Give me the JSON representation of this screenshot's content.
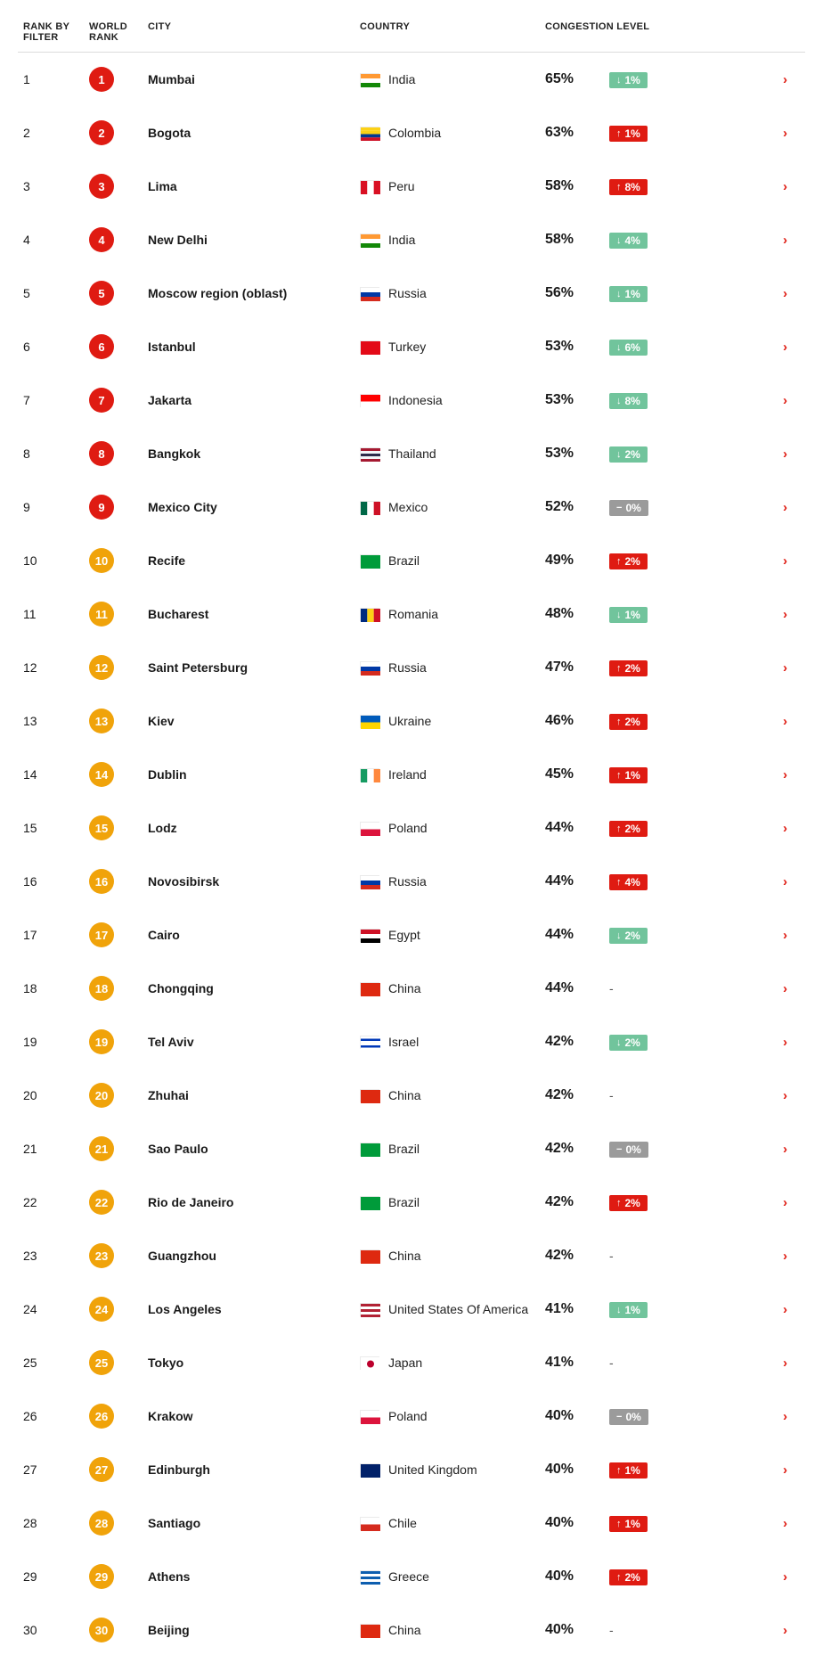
{
  "columns": {
    "filter": "RANK BY FILTER",
    "world": "WORLD RANK",
    "city": "CITY",
    "country": "COUNTRY",
    "level": "CONGESTION LEVEL"
  },
  "badge_colors": {
    "red": "#df1b12",
    "orange": "#f0a30a"
  },
  "change_colors": {
    "up": "#df1b12",
    "down": "#71c49c",
    "none": "#9b9b9b"
  },
  "flags": {
    "India": {
      "bands": "h",
      "c": [
        "#ff9933",
        "#ffffff",
        "#138808"
      ]
    },
    "Colombia": {
      "bands": "h",
      "c": [
        "#fcd116",
        "#fcd116",
        "#003893",
        "#ce1126"
      ]
    },
    "Peru": {
      "bands": "v",
      "c": [
        "#d91023",
        "#ffffff",
        "#d91023"
      ]
    },
    "Russia": {
      "bands": "h",
      "c": [
        "#ffffff",
        "#0039a6",
        "#d52b1e"
      ]
    },
    "Turkey": {
      "solid": "#e30a17"
    },
    "Indonesia": {
      "bands": "h",
      "c": [
        "#ff0000",
        "#ffffff"
      ]
    },
    "Thailand": {
      "bands": "h",
      "c": [
        "#a51931",
        "#f4f5f8",
        "#2d2a4a",
        "#f4f5f8",
        "#a51931"
      ]
    },
    "Mexico": {
      "bands": "v",
      "c": [
        "#006847",
        "#ffffff",
        "#ce1126"
      ]
    },
    "Brazil": {
      "solid": "#009b3a"
    },
    "Romania": {
      "bands": "v",
      "c": [
        "#002b7f",
        "#fcd116",
        "#ce1126"
      ]
    },
    "Ukraine": {
      "bands": "h",
      "c": [
        "#005bbb",
        "#ffd500"
      ]
    },
    "Ireland": {
      "bands": "v",
      "c": [
        "#169b62",
        "#ffffff",
        "#ff883e"
      ]
    },
    "Poland": {
      "bands": "h",
      "c": [
        "#ffffff",
        "#dc143c"
      ]
    },
    "Egypt": {
      "bands": "h",
      "c": [
        "#ce1126",
        "#ffffff",
        "#000000"
      ]
    },
    "China": {
      "solid": "#de2910"
    },
    "Israel": {
      "bands": "h",
      "c": [
        "#ffffff",
        "#0038b8",
        "#ffffff",
        "#ffffff",
        "#0038b8",
        "#ffffff"
      ]
    },
    "United States Of America": {
      "bands": "h",
      "c": [
        "#b22234",
        "#ffffff",
        "#b22234",
        "#ffffff",
        "#b22234"
      ]
    },
    "Japan": {
      "solid": "#ffffff",
      "dot": "#bc002d"
    },
    "United Kingdom": {
      "solid": "#012169"
    },
    "Chile": {
      "bands": "h",
      "c": [
        "#ffffff",
        "#d52b1e"
      ]
    },
    "Greece": {
      "bands": "h",
      "c": [
        "#0d5eaf",
        "#ffffff",
        "#0d5eaf",
        "#ffffff",
        "#0d5eaf"
      ]
    }
  },
  "rows": [
    {
      "filter": 1,
      "world": 1,
      "city": "Mumbai",
      "country": "India",
      "level": "65%",
      "change": {
        "dir": "down",
        "text": "1%"
      },
      "tier": "red"
    },
    {
      "filter": 2,
      "world": 2,
      "city": "Bogota",
      "country": "Colombia",
      "level": "63%",
      "change": {
        "dir": "up",
        "text": "1%"
      },
      "tier": "red"
    },
    {
      "filter": 3,
      "world": 3,
      "city": "Lima",
      "country": "Peru",
      "level": "58%",
      "change": {
        "dir": "up",
        "text": "8%"
      },
      "tier": "red"
    },
    {
      "filter": 4,
      "world": 4,
      "city": "New Delhi",
      "country": "India",
      "level": "58%",
      "change": {
        "dir": "down",
        "text": "4%"
      },
      "tier": "red"
    },
    {
      "filter": 5,
      "world": 5,
      "city": "Moscow region (oblast)",
      "country": "Russia",
      "level": "56%",
      "change": {
        "dir": "down",
        "text": "1%"
      },
      "tier": "red"
    },
    {
      "filter": 6,
      "world": 6,
      "city": "Istanbul",
      "country": "Turkey",
      "level": "53%",
      "change": {
        "dir": "down",
        "text": "6%"
      },
      "tier": "red"
    },
    {
      "filter": 7,
      "world": 7,
      "city": "Jakarta",
      "country": "Indonesia",
      "level": "53%",
      "change": {
        "dir": "down",
        "text": "8%"
      },
      "tier": "red"
    },
    {
      "filter": 8,
      "world": 8,
      "city": "Bangkok",
      "country": "Thailand",
      "level": "53%",
      "change": {
        "dir": "down",
        "text": "2%"
      },
      "tier": "red"
    },
    {
      "filter": 9,
      "world": 9,
      "city": "Mexico City",
      "country": "Mexico",
      "level": "52%",
      "change": {
        "dir": "none",
        "text": "0%"
      },
      "tier": "red"
    },
    {
      "filter": 10,
      "world": 10,
      "city": "Recife",
      "country": "Brazil",
      "level": "49%",
      "change": {
        "dir": "up",
        "text": "2%"
      },
      "tier": "orange"
    },
    {
      "filter": 11,
      "world": 11,
      "city": "Bucharest",
      "country": "Romania",
      "level": "48%",
      "change": {
        "dir": "down",
        "text": "1%"
      },
      "tier": "orange"
    },
    {
      "filter": 12,
      "world": 12,
      "city": "Saint Petersburg",
      "country": "Russia",
      "level": "47%",
      "change": {
        "dir": "up",
        "text": "2%"
      },
      "tier": "orange"
    },
    {
      "filter": 13,
      "world": 13,
      "city": "Kiev",
      "country": "Ukraine",
      "level": "46%",
      "change": {
        "dir": "up",
        "text": "2%"
      },
      "tier": "orange"
    },
    {
      "filter": 14,
      "world": 14,
      "city": "Dublin",
      "country": "Ireland",
      "level": "45%",
      "change": {
        "dir": "up",
        "text": "1%"
      },
      "tier": "orange"
    },
    {
      "filter": 15,
      "world": 15,
      "city": "Lodz",
      "country": "Poland",
      "level": "44%",
      "change": {
        "dir": "up",
        "text": "2%"
      },
      "tier": "orange"
    },
    {
      "filter": 16,
      "world": 16,
      "city": "Novosibirsk",
      "country": "Russia",
      "level": "44%",
      "change": {
        "dir": "up",
        "text": "4%"
      },
      "tier": "orange"
    },
    {
      "filter": 17,
      "world": 17,
      "city": "Cairo",
      "country": "Egypt",
      "level": "44%",
      "change": {
        "dir": "down",
        "text": "2%"
      },
      "tier": "orange"
    },
    {
      "filter": 18,
      "world": 18,
      "city": "Chongqing",
      "country": "China",
      "level": "44%",
      "change": null,
      "tier": "orange"
    },
    {
      "filter": 19,
      "world": 19,
      "city": "Tel Aviv",
      "country": "Israel",
      "level": "42%",
      "change": {
        "dir": "down",
        "text": "2%"
      },
      "tier": "orange"
    },
    {
      "filter": 20,
      "world": 20,
      "city": "Zhuhai",
      "country": "China",
      "level": "42%",
      "change": null,
      "tier": "orange"
    },
    {
      "filter": 21,
      "world": 21,
      "city": "Sao Paulo",
      "country": "Brazil",
      "level": "42%",
      "change": {
        "dir": "none",
        "text": "0%"
      },
      "tier": "orange"
    },
    {
      "filter": 22,
      "world": 22,
      "city": "Rio de Janeiro",
      "country": "Brazil",
      "level": "42%",
      "change": {
        "dir": "up",
        "text": "2%"
      },
      "tier": "orange"
    },
    {
      "filter": 23,
      "world": 23,
      "city": "Guangzhou",
      "country": "China",
      "level": "42%",
      "change": null,
      "tier": "orange"
    },
    {
      "filter": 24,
      "world": 24,
      "city": "Los Angeles",
      "country": "United States Of America",
      "level": "41%",
      "change": {
        "dir": "down",
        "text": "1%"
      },
      "tier": "orange"
    },
    {
      "filter": 25,
      "world": 25,
      "city": "Tokyo",
      "country": "Japan",
      "level": "41%",
      "change": null,
      "tier": "orange"
    },
    {
      "filter": 26,
      "world": 26,
      "city": "Krakow",
      "country": "Poland",
      "level": "40%",
      "change": {
        "dir": "none",
        "text": "0%"
      },
      "tier": "orange"
    },
    {
      "filter": 27,
      "world": 27,
      "city": "Edinburgh",
      "country": "United Kingdom",
      "level": "40%",
      "change": {
        "dir": "up",
        "text": "1%"
      },
      "tier": "orange"
    },
    {
      "filter": 28,
      "world": 28,
      "city": "Santiago",
      "country": "Chile",
      "level": "40%",
      "change": {
        "dir": "up",
        "text": "1%"
      },
      "tier": "orange"
    },
    {
      "filter": 29,
      "world": 29,
      "city": "Athens",
      "country": "Greece",
      "level": "40%",
      "change": {
        "dir": "up",
        "text": "2%"
      },
      "tier": "orange"
    },
    {
      "filter": 30,
      "world": 30,
      "city": "Beijing",
      "country": "China",
      "level": "40%",
      "change": null,
      "tier": "orange"
    }
  ]
}
